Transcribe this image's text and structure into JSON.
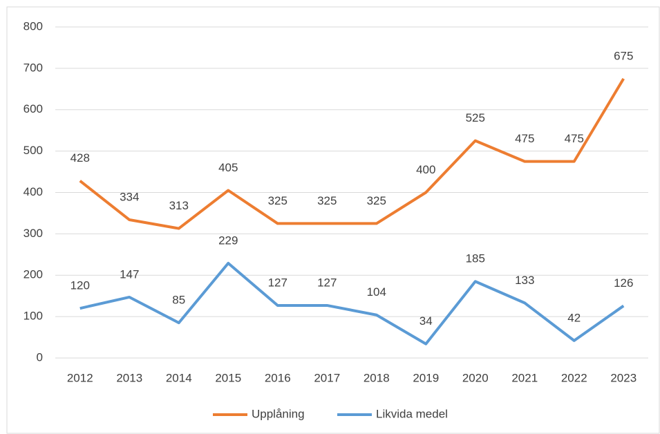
{
  "chart_data": {
    "type": "line",
    "categories": [
      "2012",
      "2013",
      "2014",
      "2015",
      "2016",
      "2017",
      "2018",
      "2019",
      "2020",
      "2021",
      "2022",
      "2023"
    ],
    "series": [
      {
        "name": "Upplåning",
        "color": "#ed7d31",
        "values": [
          428,
          334,
          313,
          405,
          325,
          325,
          325,
          400,
          525,
          475,
          475,
          675
        ]
      },
      {
        "name": "Likvida medel",
        "color": "#5b9bd5",
        "values": [
          120,
          147,
          85,
          229,
          127,
          127,
          104,
          34,
          185,
          133,
          42,
          126
        ]
      }
    ],
    "ylim": [
      0,
      800
    ],
    "yticks": [
      0,
      100,
      200,
      300,
      400,
      500,
      600,
      700,
      800
    ],
    "grid": true,
    "legend": "bottom"
  }
}
